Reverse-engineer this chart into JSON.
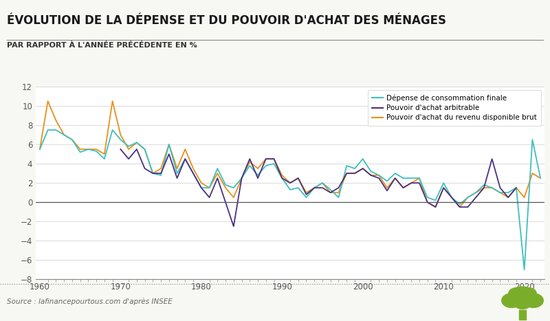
{
  "title": "ÉVOLUTION DE LA DÉPENSE ET DU POUVOIR D'ACHAT DES MÉNAGES",
  "subtitle": "PAR RAPPORT À L'ANNÉE PRÉCÉDENTE EN %",
  "source": "Source : lafinancepourtous.com d'après INSEE",
  "years": [
    1960,
    1961,
    1962,
    1963,
    1964,
    1965,
    1966,
    1967,
    1968,
    1969,
    1970,
    1971,
    1972,
    1973,
    1974,
    1975,
    1976,
    1977,
    1978,
    1979,
    1980,
    1981,
    1982,
    1983,
    1984,
    1985,
    1986,
    1987,
    1988,
    1989,
    1990,
    1991,
    1992,
    1993,
    1994,
    1995,
    1996,
    1997,
    1998,
    1999,
    2000,
    2001,
    2002,
    2003,
    2004,
    2005,
    2006,
    2007,
    2008,
    2009,
    2010,
    2011,
    2012,
    2013,
    2014,
    2015,
    2016,
    2017,
    2018,
    2019,
    2020,
    2021,
    2022
  ],
  "depense": [
    5.5,
    7.5,
    7.5,
    7.0,
    6.5,
    5.2,
    5.5,
    5.3,
    4.5,
    7.5,
    6.5,
    5.8,
    6.2,
    5.5,
    3.0,
    2.8,
    6.0,
    3.0,
    4.5,
    3.0,
    1.5,
    1.5,
    3.5,
    1.8,
    1.5,
    2.5,
    3.8,
    2.8,
    3.8,
    4.0,
    2.5,
    1.3,
    1.5,
    0.5,
    1.5,
    2.0,
    1.3,
    0.5,
    3.8,
    3.5,
    4.5,
    3.2,
    2.8,
    2.2,
    3.0,
    2.5,
    2.5,
    2.5,
    0.5,
    0.2,
    2.0,
    0.5,
    -0.2,
    0.5,
    1.0,
    1.8,
    1.5,
    1.0,
    1.0,
    1.5,
    -7.0,
    6.5,
    2.5
  ],
  "pouvoir_arbitrable": [
    null,
    null,
    null,
    null,
    null,
    null,
    null,
    null,
    null,
    null,
    5.5,
    4.5,
    5.5,
    3.5,
    3.0,
    3.0,
    5.0,
    2.5,
    4.5,
    3.0,
    1.5,
    0.5,
    2.5,
    0.0,
    -2.5,
    2.5,
    4.5,
    2.5,
    4.5,
    4.5,
    2.5,
    2.0,
    2.5,
    0.8,
    1.5,
    1.5,
    1.0,
    1.5,
    3.0,
    3.0,
    3.5,
    2.8,
    2.5,
    1.2,
    2.5,
    1.5,
    2.0,
    2.0,
    0.0,
    -0.5,
    1.5,
    0.5,
    -0.5,
    -0.5,
    0.5,
    1.5,
    4.5,
    1.5,
    0.5,
    1.5,
    null,
    null,
    null
  ],
  "pouvoir_disponible": [
    5.5,
    10.5,
    8.5,
    7.0,
    6.5,
    5.5,
    5.5,
    5.5,
    5.0,
    10.5,
    7.0,
    5.5,
    6.2,
    5.5,
    3.0,
    3.5,
    6.0,
    3.5,
    5.5,
    3.5,
    2.0,
    1.5,
    3.0,
    1.5,
    0.5,
    2.5,
    4.2,
    3.5,
    4.5,
    4.5,
    2.8,
    2.0,
    2.5,
    1.0,
    1.5,
    2.0,
    1.0,
    1.0,
    3.0,
    3.0,
    3.5,
    2.8,
    2.8,
    1.5,
    2.5,
    1.5,
    2.0,
    2.5,
    0.0,
    -0.5,
    1.5,
    0.5,
    -0.5,
    0.5,
    1.0,
    1.5,
    1.5,
    1.0,
    0.5,
    1.5,
    0.5,
    3.0,
    2.5
  ],
  "color_depense": "#3DBFBF",
  "color_arbitrable": "#4B3080",
  "color_disponible": "#E8901A",
  "ylim": [
    -8,
    12
  ],
  "yticks": [
    -8,
    -6,
    -4,
    -2,
    0,
    2,
    4,
    6,
    8,
    10,
    12
  ],
  "xlim": [
    1959.5,
    2022.5
  ],
  "xticks": [
    1960,
    1970,
    1980,
    1990,
    2000,
    2010,
    2020
  ],
  "bg_color": "#F7F7F3",
  "plot_bg": "#FFFFFF",
  "title_color": "#1a1a1a",
  "subtitle_color": "#333333",
  "legend_labels": [
    "Dépense de consommation finale",
    "Pouvoir d'achat arbitrable",
    "Pouvoir d'achat du revenu disponible brut"
  ],
  "tree_color": "#7AAE2A"
}
